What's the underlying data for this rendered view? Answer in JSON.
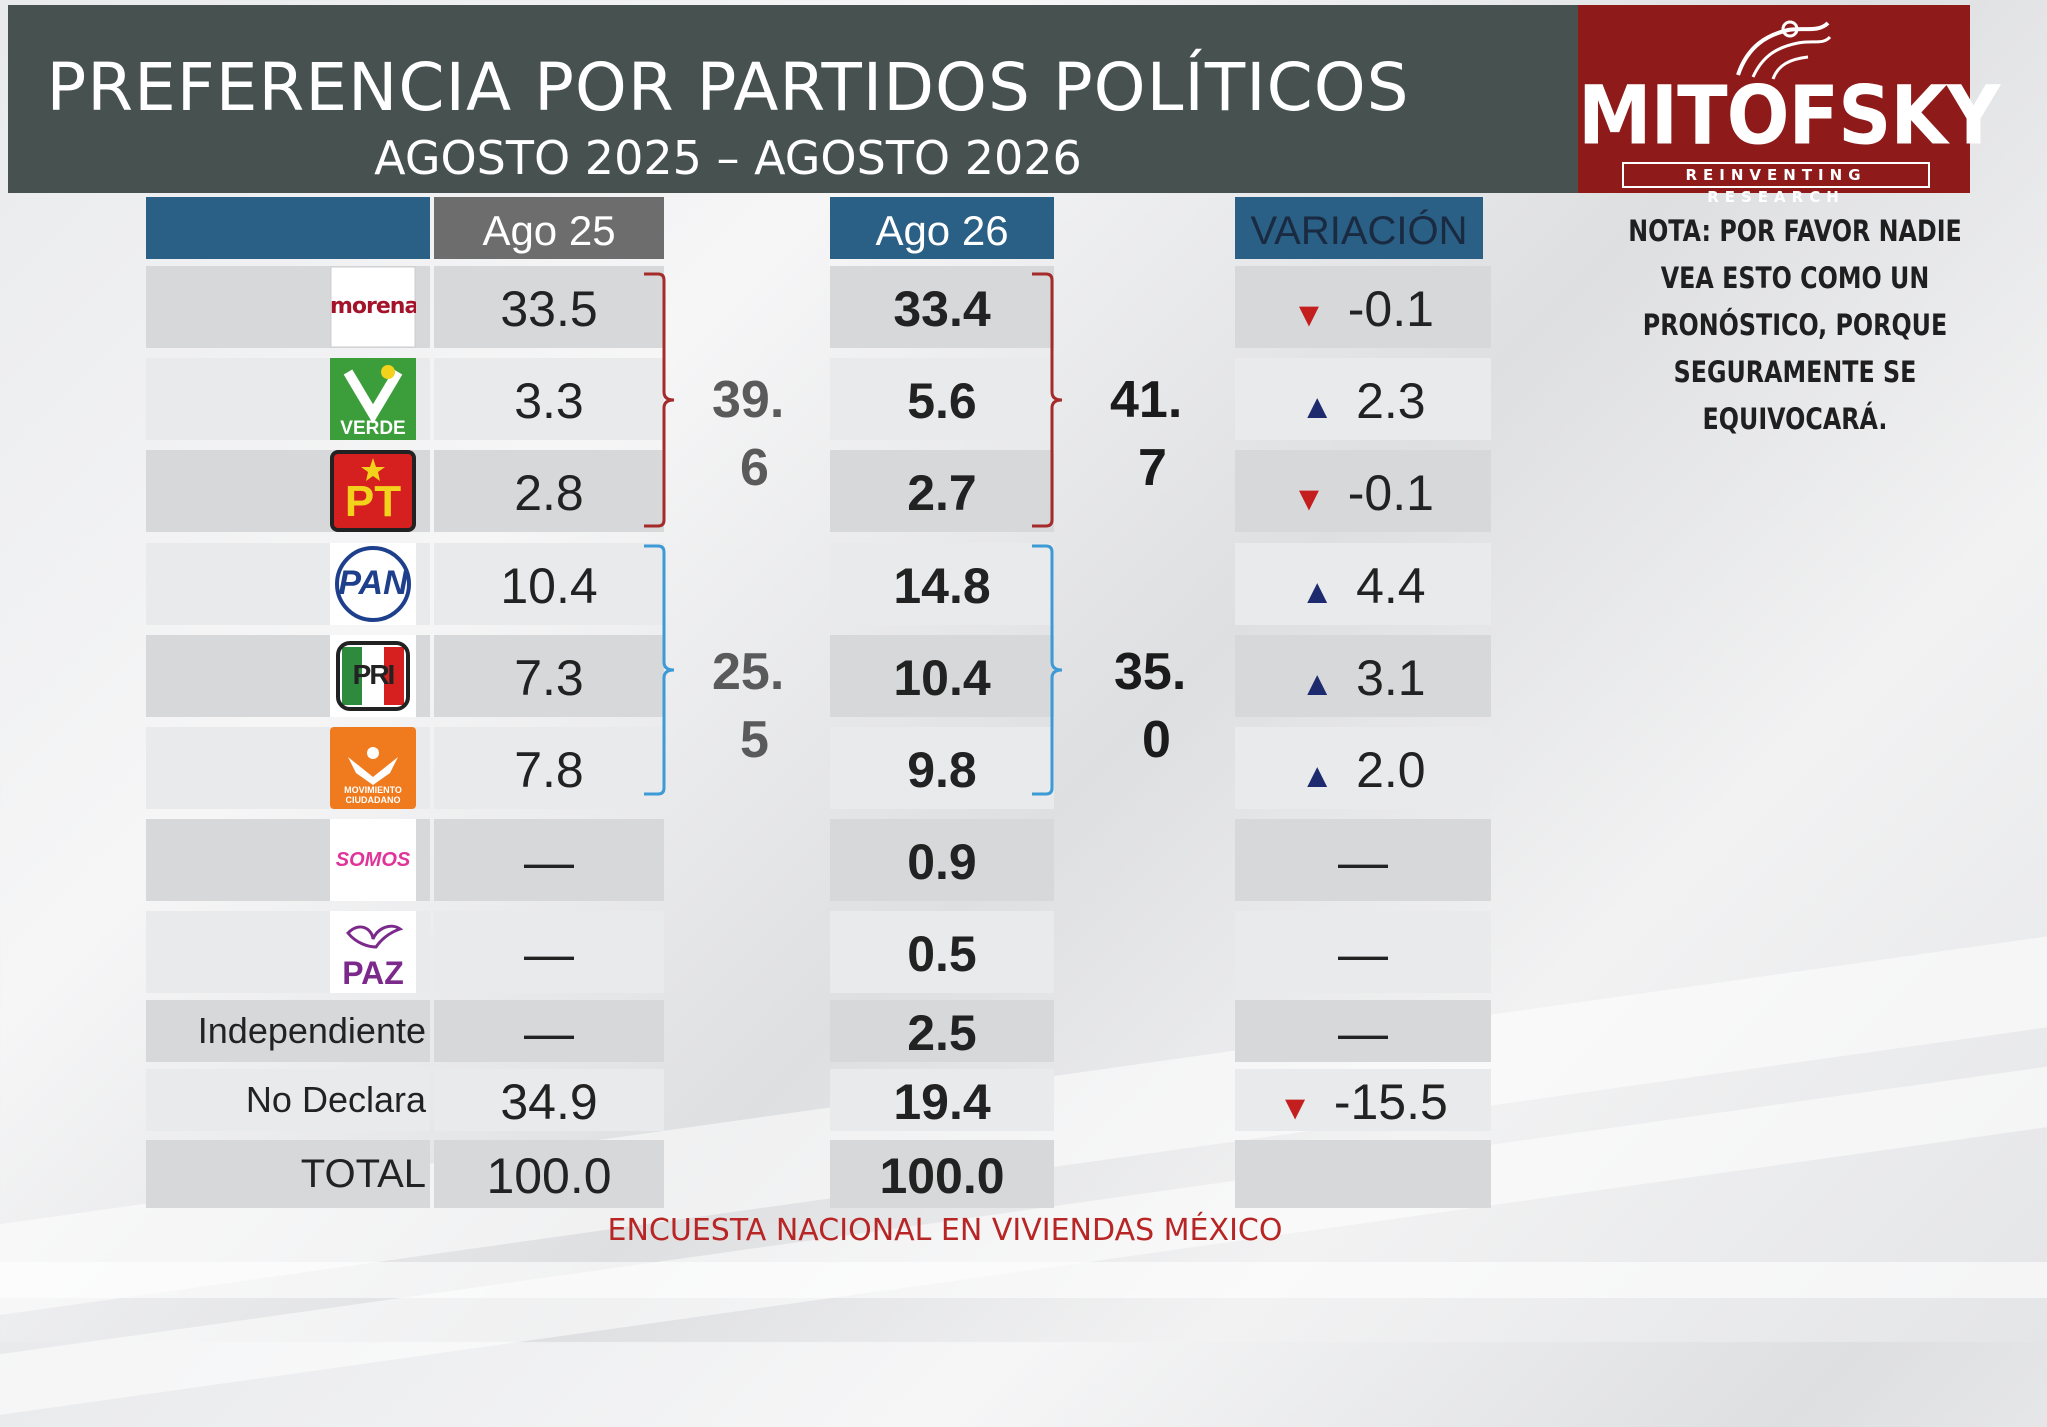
{
  "header": {
    "title": "PREFERENCIA POR PARTIDOS POLÍTICOS",
    "subtitle": "AGOSTO 2025 – AGOSTO 2026"
  },
  "logo": {
    "word": "MITOFSKY",
    "tagline": "REINVENTING RESEARCH"
  },
  "note": "NOTA: POR FAVOR NADIE VEA ESTO COMO UN PRONÓSTICO, PORQUE SEGURAMENTE SE EQUIVOCARÁ.",
  "columns": {
    "col1": "Ago 25",
    "col2": "Ago 26",
    "col3": "VARIACIÓN"
  },
  "rows": [
    {
      "party": "morena",
      "logo_text": "morena",
      "ago25": "33.5",
      "ago26": "33.4",
      "variacion": "-0.1",
      "direction": "down"
    },
    {
      "party": "verde",
      "logo_text": "VERDE",
      "ago25": "3.3",
      "ago26": "5.6",
      "variacion": "2.3",
      "direction": "up"
    },
    {
      "party": "pt",
      "logo_text": "PT",
      "ago25": "2.8",
      "ago26": "2.7",
      "variacion": "-0.1",
      "direction": "down"
    },
    {
      "party": "pan",
      "logo_text": "PAN",
      "ago25": "10.4",
      "ago26": "14.8",
      "variacion": "4.4",
      "direction": "up"
    },
    {
      "party": "pri",
      "logo_text": "PRI",
      "ago25": "7.3",
      "ago26": "10.4",
      "variacion": "3.1",
      "direction": "up"
    },
    {
      "party": "mc",
      "logo_text": "MOVIMIENTO CIUDADANO",
      "ago25": "7.8",
      "ago26": "9.8",
      "variacion": "2.0",
      "direction": "up"
    },
    {
      "party": "somos",
      "logo_text": "SOMOS",
      "ago25": "—",
      "ago26": "0.9",
      "variacion": "—",
      "direction": "none"
    },
    {
      "party": "paz",
      "logo_text": "PAZ",
      "ago25": "—",
      "ago26": "0.5",
      "variacion": "—",
      "direction": "none"
    },
    {
      "party": "independiente",
      "label": "Independiente",
      "ago25": "—",
      "ago26": "2.5",
      "variacion": "—",
      "direction": "none"
    },
    {
      "party": "no-declara",
      "label": "No Declara",
      "ago25": "34.9",
      "ago26": "19.4",
      "variacion": "-15.5",
      "direction": "down"
    },
    {
      "party": "total",
      "label": "TOTAL",
      "ago25": "100.0",
      "ago26": "100.0",
      "variacion": "",
      "direction": "none"
    }
  ],
  "groups": {
    "ago25": [
      {
        "label_line1": "39.",
        "label_line2": "6"
      },
      {
        "label_line1": "25.",
        "label_line2": "5"
      }
    ],
    "ago26": [
      {
        "label_line1": "41.",
        "label_line2": "7"
      },
      {
        "label_line1": "35.",
        "label_line2": "0"
      }
    ]
  },
  "footer": "ENCUESTA NACIONAL EN VIVIENDAS MÉXICO",
  "colors": {
    "header_bg": "#465150",
    "col_header_blue": "#2a5f86",
    "col_header_gray": "#6d6d6d",
    "coalition_red": "#a52a2a",
    "coalition_blue": "#3c9ad6",
    "arrow_up": "#1d2a6e",
    "arrow_down": "#c41f1f",
    "logo_bg": "#8f1a1a",
    "footer_text": "#b82525"
  },
  "chart_data": {
    "type": "table",
    "title": "PREFERENCIA POR PARTIDOS POLÍTICOS",
    "subtitle": "AGOSTO 2025 – AGOSTO 2026",
    "columns": [
      "Ago 25",
      "Ago 26",
      "VARIACIÓN"
    ],
    "rows": [
      {
        "name": "morena",
        "values": [
          "33.5",
          "33.4",
          "-0.1"
        ]
      },
      {
        "name": "VERDE",
        "values": [
          "3.3",
          "5.6",
          "2.3"
        ]
      },
      {
        "name": "PT",
        "values": [
          "2.8",
          "2.7",
          "-0.1"
        ]
      },
      {
        "name": "PAN",
        "values": [
          "10.4",
          "14.8",
          "4.4"
        ]
      },
      {
        "name": "PRI",
        "values": [
          "7.3",
          "10.4",
          "3.1"
        ]
      },
      {
        "name": "MOVIMIENTO CIUDADANO",
        "values": [
          "7.8",
          "9.8",
          "2.0"
        ]
      },
      {
        "name": "SOMOS",
        "values": [
          "—",
          "0.9",
          "—"
        ]
      },
      {
        "name": "PAZ",
        "values": [
          "—",
          "0.5",
          "—"
        ]
      },
      {
        "name": "Independiente",
        "values": [
          "—",
          "2.5",
          "—"
        ]
      },
      {
        "name": "No Declara",
        "values": [
          "34.9",
          "19.4",
          "-15.5"
        ]
      },
      {
        "name": "TOTAL",
        "values": [
          "100.0",
          "100.0",
          ""
        ]
      }
    ],
    "coalition_totals": {
      "Ago 25": [
        "39.6",
        "25.5"
      ],
      "Ago 26": [
        "41.7",
        "35.0"
      ]
    }
  }
}
